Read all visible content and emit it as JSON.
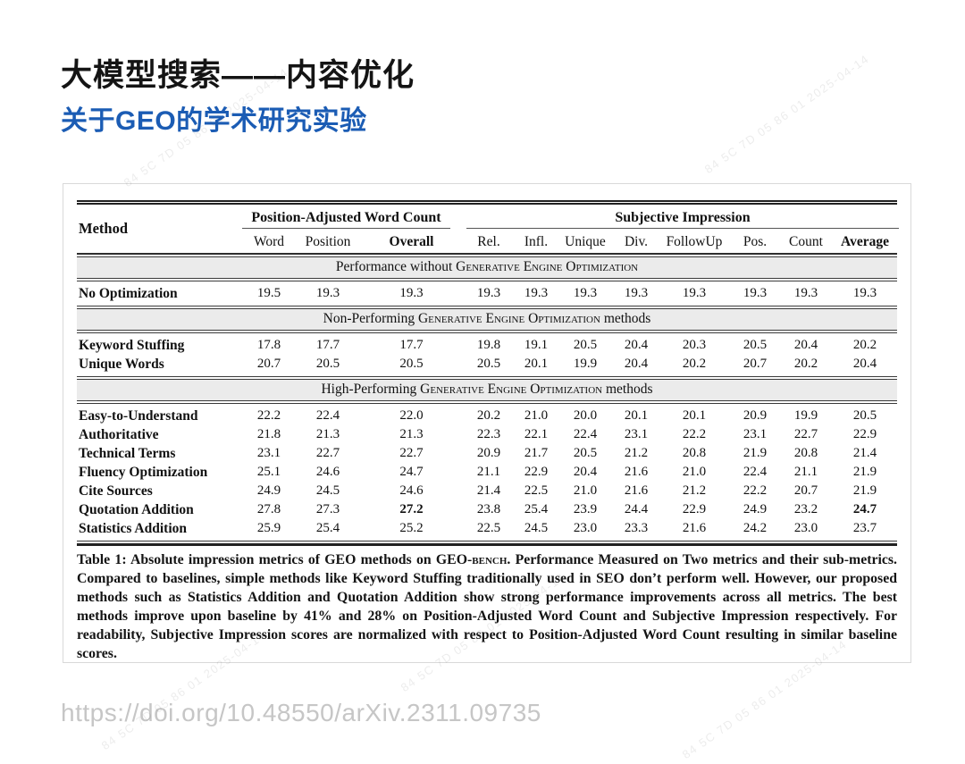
{
  "slide": {
    "title": "大模型搜索——内容优化",
    "subtitle": "关于GEO的学术研究实验",
    "accent_color": "#1b5cb4",
    "footer_link": "https://doi.org/10.48550/arXiv.2311.09735"
  },
  "watermark": {
    "text": "84 5C 7D 05 86 01 2025-04-14"
  },
  "table": {
    "method_header": "Method",
    "group_headers": [
      {
        "label": "Position-Adjusted Word Count",
        "span": 3
      },
      {
        "label": "Subjective Impression",
        "span": 8
      }
    ],
    "columns": [
      "Word",
      "Position",
      "Overall",
      "Rel.",
      "Infl.",
      "Unique",
      "Div.",
      "FollowUp",
      "Pos.",
      "Count",
      "Average"
    ],
    "bold_columns": [
      "Overall",
      "Average"
    ],
    "sections": [
      {
        "band": {
          "prefix": "Performance without ",
          "smallcaps": "Generative Engine Optimization",
          "suffix": ""
        },
        "rows": [
          {
            "method": "No Optimization",
            "values": [
              "19.5",
              "19.3",
              "19.3",
              "19.3",
              "19.3",
              "19.3",
              "19.3",
              "19.3",
              "19.3",
              "19.3",
              "19.3"
            ],
            "bold": []
          }
        ]
      },
      {
        "band": {
          "prefix": "Non-Performing ",
          "smallcaps": "Generative Engine Optimization",
          "suffix": " methods"
        },
        "rows": [
          {
            "method": "Keyword Stuffing",
            "values": [
              "17.8",
              "17.7",
              "17.7",
              "19.8",
              "19.1",
              "20.5",
              "20.4",
              "20.3",
              "20.5",
              "20.4",
              "20.2"
            ],
            "bold": []
          },
          {
            "method": "Unique Words",
            "values": [
              "20.7",
              "20.5",
              "20.5",
              "20.5",
              "20.1",
              "19.9",
              "20.4",
              "20.2",
              "20.7",
              "20.2",
              "20.4"
            ],
            "bold": []
          }
        ]
      },
      {
        "band": {
          "prefix": "High-Performing ",
          "smallcaps": "Generative Engine Optimization",
          "suffix": " methods"
        },
        "rows": [
          {
            "method": "Easy-to-Understand",
            "values": [
              "22.2",
              "22.4",
              "22.0",
              "20.2",
              "21.0",
              "20.0",
              "20.1",
              "20.1",
              "20.9",
              "19.9",
              "20.5"
            ],
            "bold": []
          },
          {
            "method": "Authoritative",
            "values": [
              "21.8",
              "21.3",
              "21.3",
              "22.3",
              "22.1",
              "22.4",
              "23.1",
              "22.2",
              "23.1",
              "22.7",
              "22.9"
            ],
            "bold": []
          },
          {
            "method": "Technical Terms",
            "values": [
              "23.1",
              "22.7",
              "22.7",
              "20.9",
              "21.7",
              "20.5",
              "21.2",
              "20.8",
              "21.9",
              "20.8",
              "21.4"
            ],
            "bold": []
          },
          {
            "method": "Fluency Optimization",
            "values": [
              "25.1",
              "24.6",
              "24.7",
              "21.1",
              "22.9",
              "20.4",
              "21.6",
              "21.0",
              "22.4",
              "21.1",
              "21.9"
            ],
            "bold": []
          },
          {
            "method": "Cite Sources",
            "values": [
              "24.9",
              "24.5",
              "24.6",
              "21.4",
              "22.5",
              "21.0",
              "21.6",
              "21.2",
              "22.2",
              "20.7",
              "21.9"
            ],
            "bold": []
          },
          {
            "method": "Quotation Addition",
            "values": [
              "27.8",
              "27.3",
              "27.2",
              "23.8",
              "25.4",
              "23.9",
              "24.4",
              "22.9",
              "24.9",
              "23.2",
              "24.7"
            ],
            "bold": [
              2,
              10
            ]
          },
          {
            "method": "Statistics Addition",
            "values": [
              "25.9",
              "25.4",
              "25.2",
              "22.5",
              "24.5",
              "23.0",
              "23.3",
              "21.6",
              "24.2",
              "23.0",
              "23.7"
            ],
            "bold": []
          }
        ]
      }
    ],
    "caption": {
      "before_sc": "Table 1:  Absolute impression metrics of GEO methods on GEO-",
      "sc": "bench",
      "after_sc": ". Performance Measured on Two metrics and their sub-metrics. Compared to baselines, simple methods like Keyword Stuffing traditionally used in SEO don’t perform well. However, our proposed methods such as Statistics Addition and Quotation Addition show strong performance improvements across all metrics. The best methods improve upon baseline by 41% and 28% on Position-Adjusted Word Count and Subjective Impression respectively. For readability, Subjective Impression scores are normalized with respect to Position-Adjusted Word Count resulting in similar baseline scores."
    }
  }
}
